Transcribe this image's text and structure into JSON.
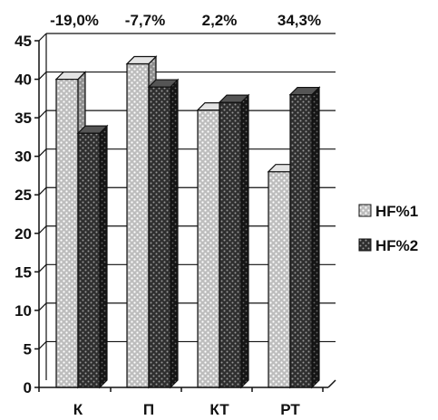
{
  "chart_data": {
    "type": "bar",
    "categories": [
      "К",
      "П",
      "КТ",
      "РТ"
    ],
    "series": [
      {
        "name": "HF%1",
        "values": [
          40,
          42,
          36,
          28
        ]
      },
      {
        "name": "HF%2",
        "values": [
          33,
          39,
          37,
          38
        ]
      }
    ],
    "change_labels": [
      "-19,0%",
      "-7,7%",
      "2,2%",
      "34,3%"
    ],
    "ylim": [
      0,
      45
    ],
    "yticks": [
      0,
      5,
      10,
      15,
      20,
      25,
      30,
      35,
      40,
      45
    ],
    "grid": true,
    "legend": "right",
    "colors": {
      "series1": "#c8c8c8",
      "series2": "#2e2e2e"
    }
  }
}
